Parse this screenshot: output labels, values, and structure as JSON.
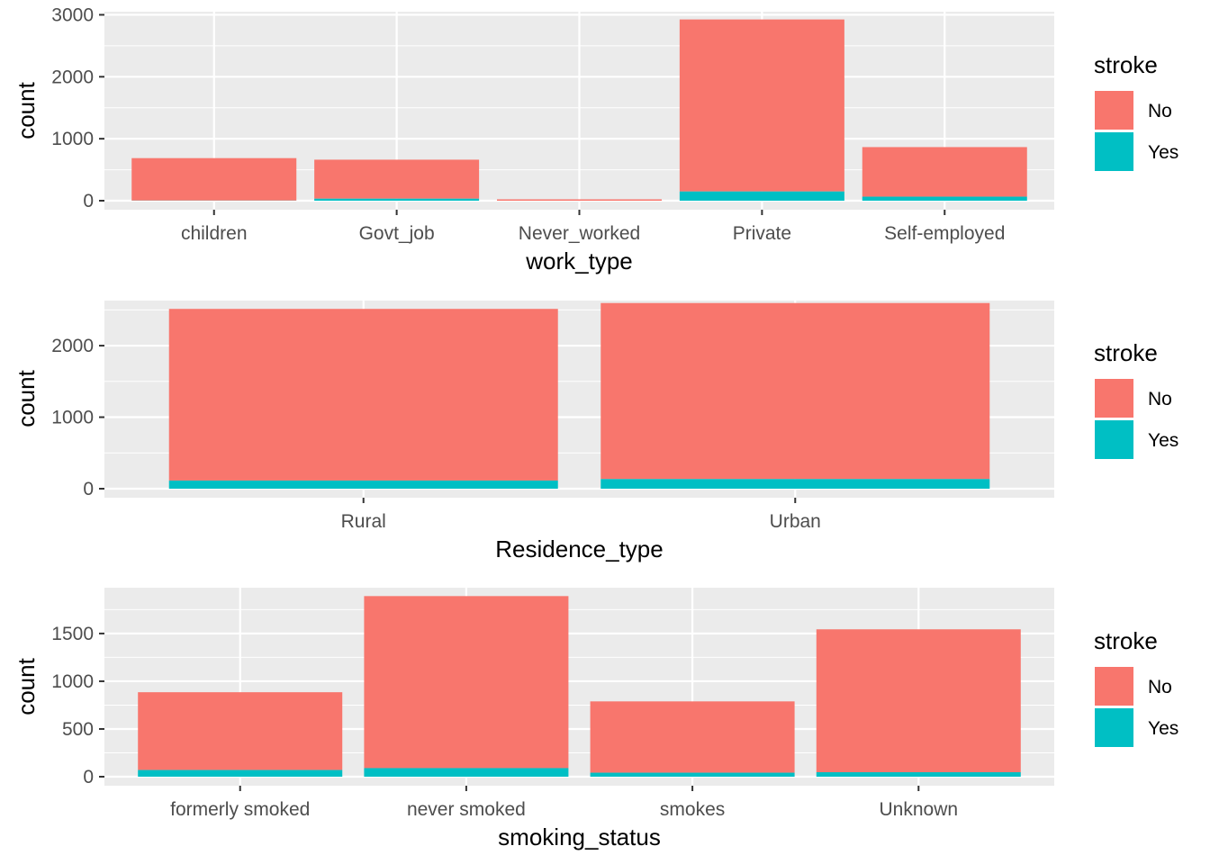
{
  "chart_data": [
    {
      "type": "bar",
      "stacked": true,
      "xlabel": "work_type",
      "ylabel": "count",
      "categories": [
        "children",
        "Govt_job",
        "Never_worked",
        "Private",
        "Self-employed"
      ],
      "series": [
        {
          "name": "No",
          "values": [
            685,
            629,
            22,
            2776,
            800
          ]
        },
        {
          "name": "Yes",
          "values": [
            2,
            33,
            0,
            149,
            65
          ]
        }
      ],
      "ylim": [
        0,
        3050
      ],
      "yticks": [
        0,
        1000,
        2000,
        3000
      ],
      "ytick_labels": [
        "0",
        "1000",
        "2000",
        "3000"
      ],
      "grid": true,
      "legend": {
        "title": "stroke",
        "placement": "right",
        "entries": [
          "No",
          "Yes"
        ]
      }
    },
    {
      "type": "bar",
      "stacked": true,
      "xlabel": "Residence_type",
      "ylabel": "count",
      "categories": [
        "Rural",
        "Urban"
      ],
      "series": [
        {
          "name": "No",
          "values": [
            2400,
            2461
          ]
        },
        {
          "name": "Yes",
          "values": [
            114,
            135
          ]
        }
      ],
      "ylim": [
        0,
        2630
      ],
      "yticks": [
        0,
        1000,
        2000
      ],
      "ytick_labels": [
        "0",
        "1000",
        "2000"
      ],
      "grid": true,
      "legend": {
        "title": "stroke",
        "placement": "right",
        "entries": [
          "No",
          "Yes"
        ]
      }
    },
    {
      "type": "bar",
      "stacked": true,
      "xlabel": "smoking_status",
      "ylabel": "count",
      "categories": [
        "formerly smoked",
        "never smoked",
        "smokes",
        "Unknown"
      ],
      "series": [
        {
          "name": "No",
          "values": [
            815,
            1802,
            747,
            1497
          ]
        },
        {
          "name": "Yes",
          "values": [
            70,
            90,
            42,
            47
          ]
        }
      ],
      "ylim": [
        0,
        1980
      ],
      "yticks": [
        0,
        500,
        1000,
        1500
      ],
      "ytick_labels": [
        "0",
        "500",
        "1000",
        "1500"
      ],
      "grid": true,
      "legend": {
        "title": "stroke",
        "placement": "right",
        "entries": [
          "No",
          "Yes"
        ]
      }
    }
  ],
  "colors": {
    "No": "#F8766D",
    "Yes": "#00BFC4",
    "panel_background": "#EBEBEB",
    "grid": "#FFFFFF"
  }
}
